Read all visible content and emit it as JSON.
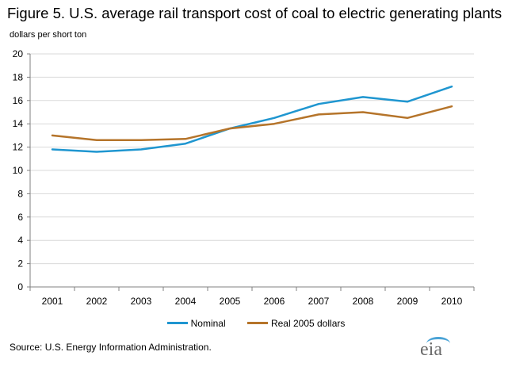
{
  "page": {
    "title": "Figure 5. U.S. average rail transport cost of coal to electric generating plants",
    "unit_label": "dollars per short ton",
    "source": "Source: U.S. Energy  Information Administration.",
    "logo_text": "eia"
  },
  "chart_data": {
    "type": "line",
    "title": "Figure 5. U.S. average rail transport cost of coal to electric generating plants",
    "ylabel": "dollars per short ton",
    "xlabel": "",
    "categories": [
      "2001",
      "2002",
      "2003",
      "2004",
      "2005",
      "2006",
      "2007",
      "2008",
      "2009",
      "2010"
    ],
    "ylim": [
      0,
      20
    ],
    "yticks": [
      0,
      2,
      4,
      6,
      8,
      10,
      12,
      14,
      16,
      18,
      20
    ],
    "grid": true,
    "legend": "bottom",
    "series": [
      {
        "name": "Nominal",
        "color": "#1f96d0",
        "values": [
          11.8,
          11.6,
          11.8,
          12.3,
          13.6,
          14.5,
          15.7,
          16.3,
          15.9,
          17.2
        ]
      },
      {
        "name": "Real 2005 dollars",
        "color": "#b5742a",
        "values": [
          13.0,
          12.6,
          12.6,
          12.7,
          13.6,
          14.0,
          14.8,
          15.0,
          14.5,
          15.5
        ]
      }
    ]
  }
}
